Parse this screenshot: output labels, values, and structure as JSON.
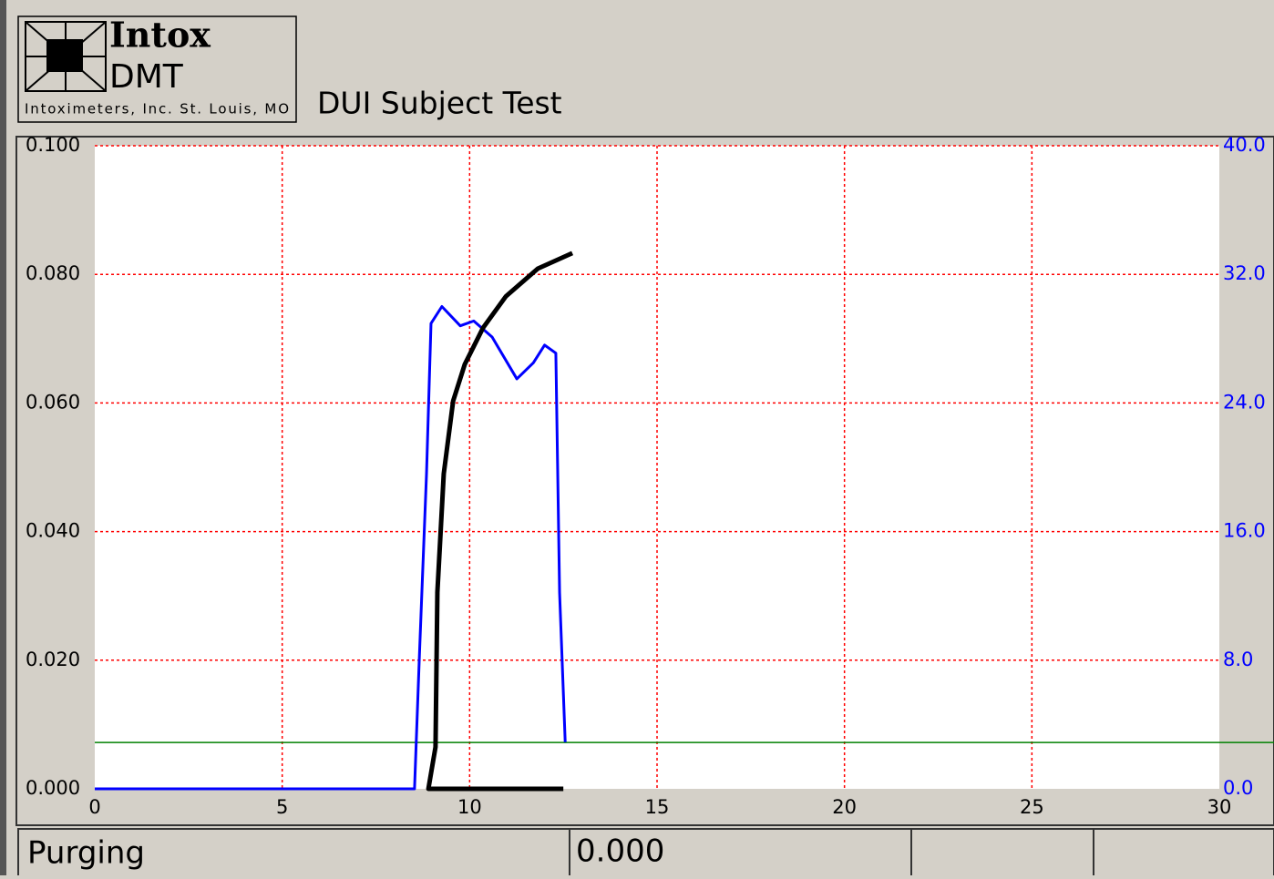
{
  "header": {
    "logo_line1": "Intox",
    "logo_line2": "DMT",
    "logo_caption": "Intoximeters, Inc. St. Louis, MO",
    "title": "DUI Subject Test"
  },
  "chart_data": {
    "type": "line",
    "xlim": [
      0,
      30
    ],
    "xticks": [
      0,
      5,
      10,
      15,
      20,
      25,
      30
    ],
    "ylim": [
      0,
      0.1
    ],
    "yticks": [
      {
        "value": 0,
        "label": "0.000"
      },
      {
        "value": 0.02,
        "label": "0.020"
      },
      {
        "value": 0.04,
        "label": "0.040"
      },
      {
        "value": 0.06,
        "label": "0.060"
      },
      {
        "value": 0.08,
        "label": "0.080"
      },
      {
        "value": 0.1,
        "label": "0.100"
      }
    ],
    "y2lim": [
      0,
      40
    ],
    "y2ticks": [
      {
        "value": 0,
        "label": "0.0"
      },
      {
        "value": 8,
        "label": "8.0"
      },
      {
        "value": 16,
        "label": "16.0"
      },
      {
        "value": 24,
        "label": "24.0"
      },
      {
        "value": 32,
        "label": "32.0"
      },
      {
        "value": 40,
        "label": "40.0"
      }
    ],
    "grid": true,
    "grid_color": "#ff0000",
    "y2_tick_color": "#0000ff",
    "series": [
      {
        "color": "#0000ff",
        "axis": "y2",
        "x": [
          0,
          8.53,
          8.66,
          8.85,
          8.97,
          9.26,
          9.75,
          10.11,
          10.6,
          11.26,
          11.7,
          12.0,
          12.3,
          12.4,
          12.55
        ],
        "values": [
          0,
          0,
          8.27,
          19.6,
          28.95,
          30.0,
          28.8,
          29.1,
          28.1,
          25.5,
          26.5,
          27.6,
          27.1,
          12.2,
          2.9
        ]
      },
      {
        "color": "#000000",
        "x": [
          12.5,
          8.9,
          9.09,
          9.14,
          9.31,
          9.56,
          9.87,
          10.36,
          10.97,
          11.82,
          12.74
        ],
        "values": [
          0,
          0,
          0.0065,
          0.0306,
          0.049,
          0.0603,
          0.066,
          0.0717,
          0.0766,
          0.0809,
          0.0833
        ]
      }
    ],
    "reference_line": {
      "value": 0.0072,
      "color": "#008000"
    }
  },
  "status": {
    "state": "Purging",
    "reading": "0.000"
  }
}
